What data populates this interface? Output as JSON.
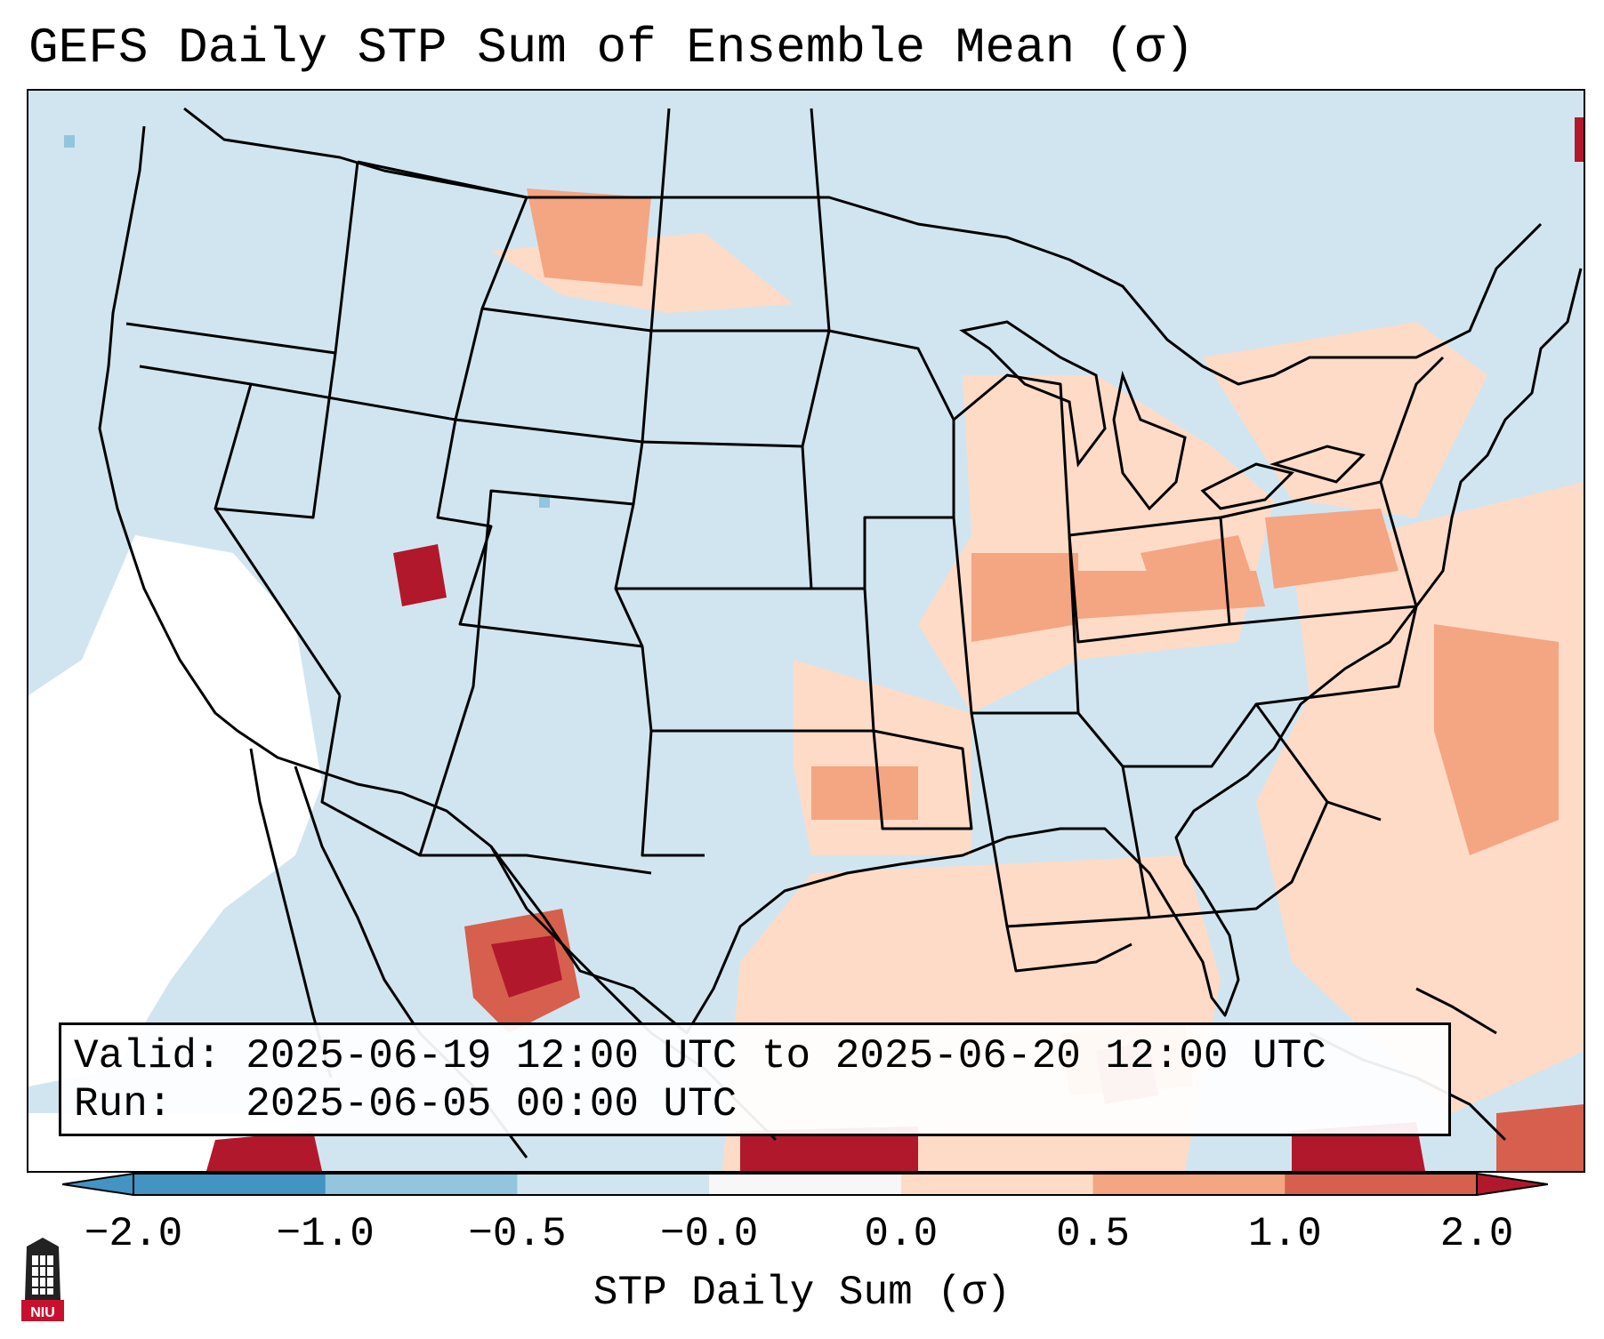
{
  "title": "GEFS Daily STP Sum of Ensemble Mean (σ)",
  "info": {
    "valid_label": "Valid:",
    "valid_value": "2025-06-19 12:00 UTC to 2025-06-20 12:00 UTC",
    "run_label": "Run:",
    "run_value": "2025-06-05 00:00 UTC"
  },
  "colorbar": {
    "title": "STP Daily Sum (σ)",
    "ticks": [
      "−2.0",
      "−1.0",
      "−0.5",
      "−0.0",
      "0.0",
      "0.5",
      "1.0",
      "2.0"
    ],
    "colors": [
      "#4393c3",
      "#92c5de",
      "#d1e5f0",
      "#f7f7f7",
      "#fddbc7",
      "#f4a582",
      "#d6604d",
      "#b2182b"
    ],
    "extend": "both"
  },
  "colors": {
    "neutral": "#d1e5f0",
    "no_data": "#ffffff",
    "light": "#fddbc7",
    "medium": "#f4a582",
    "strong": "#d6604d",
    "extreme": "#b2182b",
    "negative": "#92c5de"
  },
  "logo": {
    "text": "NIU",
    "icon": "niu-tower-logo"
  }
}
